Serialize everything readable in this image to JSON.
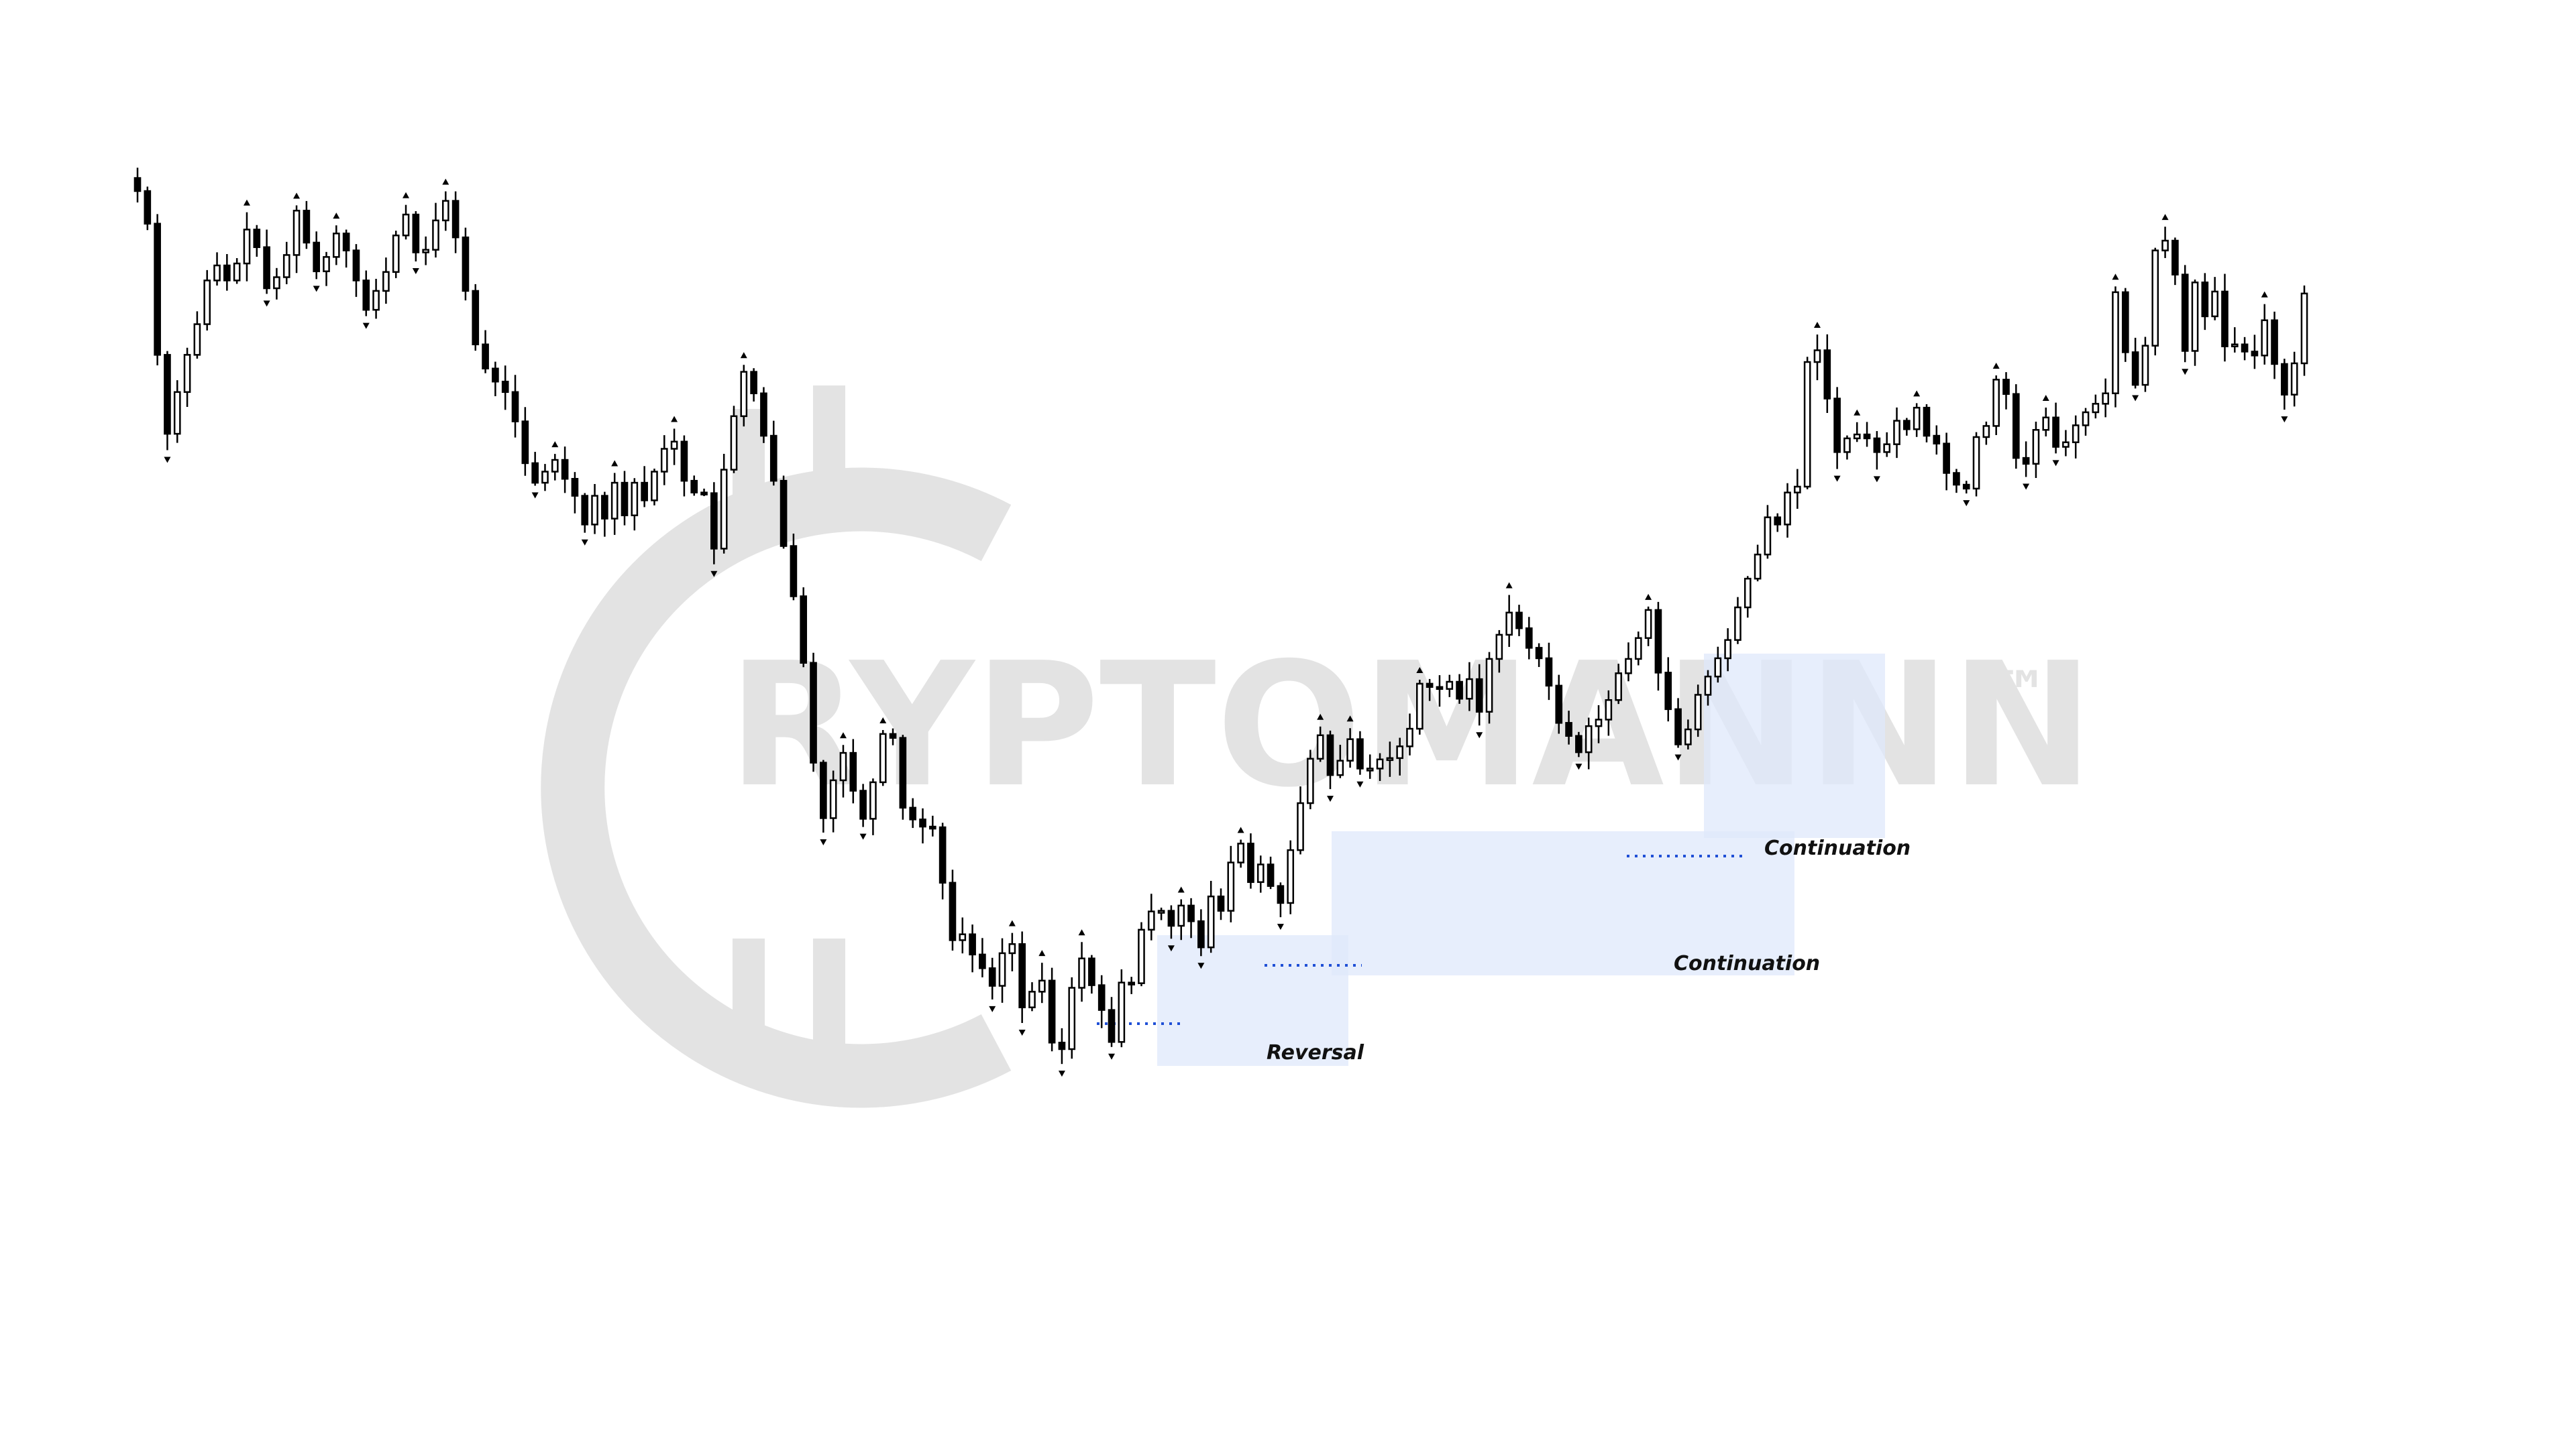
{
  "watermark": {
    "text": "RYPTOMANNN",
    "trademark": "™",
    "color": "#e3e3e3"
  },
  "colors": {
    "bull_body": "#ffffff",
    "bear_body": "#000000",
    "wick": "#000000",
    "zone_fill": "#dfe8fb",
    "liquidity_line": "#1f4fd6",
    "label_text": "#111111"
  },
  "chart_data": {
    "type": "candlestick",
    "title": "",
    "xlabel": "",
    "ylabel": "",
    "grid": false,
    "legend": "none",
    "ylim": [
      0,
      100
    ],
    "closes": [
      100.0,
      95.0,
      74.9,
      62.8,
      69.2,
      74.9,
      79.6,
      86.3,
      88.6,
      86.3,
      88.9,
      94.1,
      91.4,
      85.1,
      86.8,
      90.2,
      97.0,
      92.1,
      87.7,
      89.9,
      93.5,
      90.9,
      86.3,
      81.8,
      84.7,
      87.6,
      93.2,
      96.4,
      90.6,
      91.0,
      95.5,
      98.5,
      92.9,
      84.7,
      76.5,
      72.8,
      70.8,
      69.2,
      64.7,
      58.3,
      55.3,
      57.0,
      58.8,
      55.9,
      53.3,
      48.9,
      53.3,
      49.8,
      55.3,
      50.3,
      55.3,
      52.6,
      57.0,
      60.5,
      61.6,
      55.6,
      53.8,
      53.7,
      45.2,
      57.3,
      65.5,
      72.3,
      69.0,
      62.5,
      55.6,
      45.6,
      37.9,
      27.7,
      12.4,
      3.9,
      9.7,
      13.9,
      8.1,
      3.8,
      9.4,
      16.8,
      16.2,
      5.5,
      3.7,
      2.6,
      2.5,
      -6.0,
      -14.8,
      -13.9,
      -17.0,
      -19.1,
      -21.8,
      -16.8,
      -15.4,
      -25.1,
      -22.7,
      -21.0,
      -30.5,
      -31.5,
      -22.1,
      -17.6,
      -21.7,
      -25.5,
      -30.4,
      -21.3,
      -21.4,
      -13.2,
      -10.4,
      -10.3,
      -12.6,
      -9.5,
      -11.9,
      -15.9,
      -8.1,
      -10.3,
      -2.9,
      0.0,
      -5.9,
      -3.2,
      -6.5,
      -9.1,
      -1.0,
      6.2,
      13.0,
      16.6,
      10.5,
      12.7,
      16.0,
      11.5,
      11.5,
      12.9,
      13.1,
      14.9,
      17.6,
      24.5,
      24.0,
      23.7,
      24.8,
      22.2,
      25.2,
      20.2,
      28.3,
      32.0,
      35.4,
      33.0,
      30.0,
      28.4,
      24.2,
      18.5,
      16.5,
      14.0,
      18.0,
      19.0,
      22.0,
      26.1,
      28.3,
      31.5,
      35.8,
      26.2,
      20.6,
      15.2,
      17.5,
      22.8,
      25.6,
      28.4,
      31.2,
      36.2,
      40.6,
      44.3,
      50.0,
      48.9,
      53.8,
      54.7,
      73.8,
      75.6,
      68.2,
      60.0,
      62.1,
      62.7,
      62.1,
      60.0,
      61.2,
      64.8,
      63.5,
      66.8,
      62.5,
      61.3,
      56.8,
      55.0,
      54.4,
      62.3,
      64.0,
      71.1,
      68.9,
      59.1,
      58.2,
      63.4,
      65.3,
      60.8,
      61.5,
      64.1,
      66.1,
      67.4,
      69.0,
      84.5,
      75.3,
      70.3,
      76.3,
      90.9,
      92.4,
      87.2,
      75.5,
      86.0,
      80.8,
      84.6,
      76.2,
      76.5,
      75.4,
      74.8,
      80.2,
      73.5,
      68.8,
      73.6,
      84.3
    ],
    "zones": [
      {
        "kind": "Reversal",
        "label": "Reversal"
      },
      {
        "kind": "Continuation",
        "label": "Continuation"
      },
      {
        "kind": "Continuation",
        "label": "Continuation"
      }
    ]
  }
}
